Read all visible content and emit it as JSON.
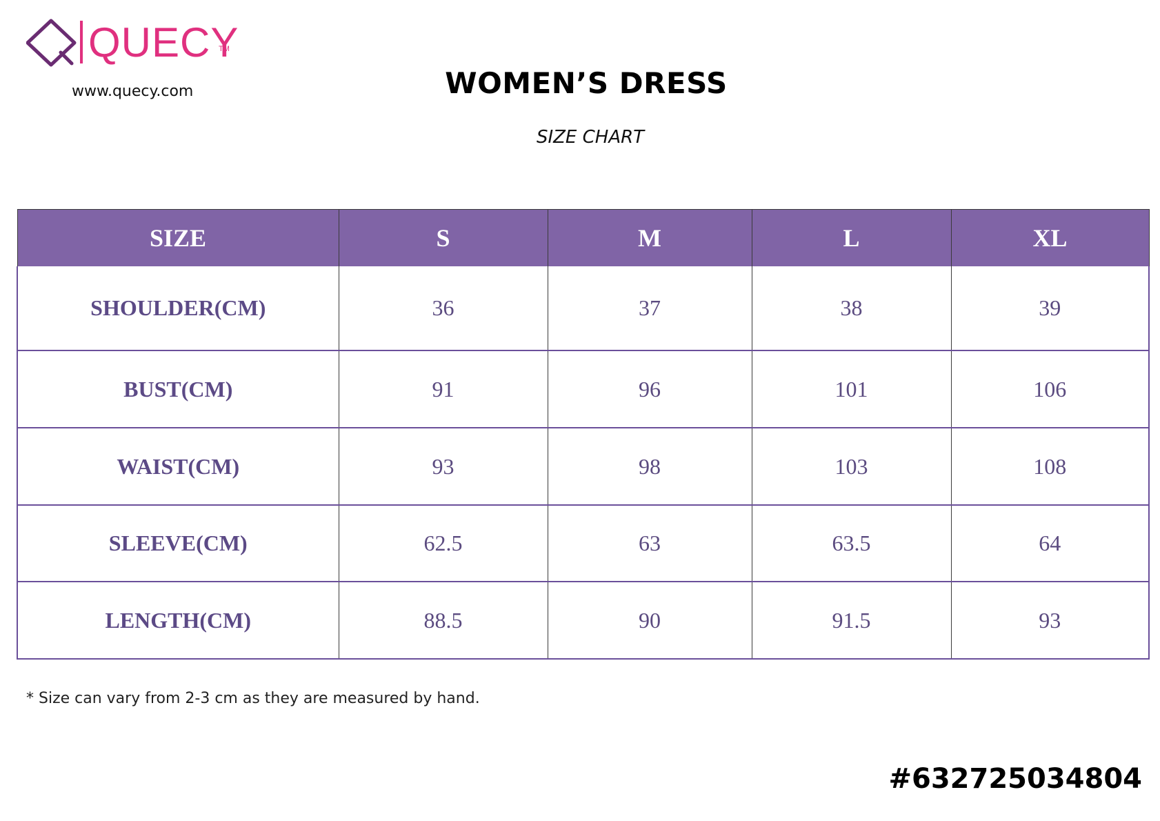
{
  "brand": {
    "logo_text": "QUECY",
    "trademark": "TM",
    "website": "www.quecy.com",
    "colors": {
      "logo_pink": "#e0307f",
      "logo_purple": "#6a2c72"
    }
  },
  "document": {
    "title": "WOMEN’S DRESS",
    "subtitle": "SIZE CHART"
  },
  "table": {
    "header_color": "#8064a6",
    "headers": [
      "SIZE",
      "S",
      "M",
      "L",
      "XL"
    ],
    "rows": [
      {
        "label": "SHOULDER(CM)",
        "values": [
          "36",
          "37",
          "38",
          "39"
        ]
      },
      {
        "label": "BUST(CM)",
        "values": [
          "91",
          "96",
          "101",
          "106"
        ]
      },
      {
        "label": "WAIST(CM)",
        "values": [
          "93",
          "98",
          "103",
          "108"
        ]
      },
      {
        "label": "SLEEVE(CM)",
        "values": [
          "62.5",
          "63",
          "63.5",
          "64"
        ]
      },
      {
        "label": "LENGTH(CM)",
        "values": [
          "88.5",
          "90",
          "91.5",
          "93"
        ]
      }
    ]
  },
  "footer": {
    "note": "* Size can vary from 2-3 cm as they are measured by hand.",
    "product_code": "#632725034804"
  }
}
